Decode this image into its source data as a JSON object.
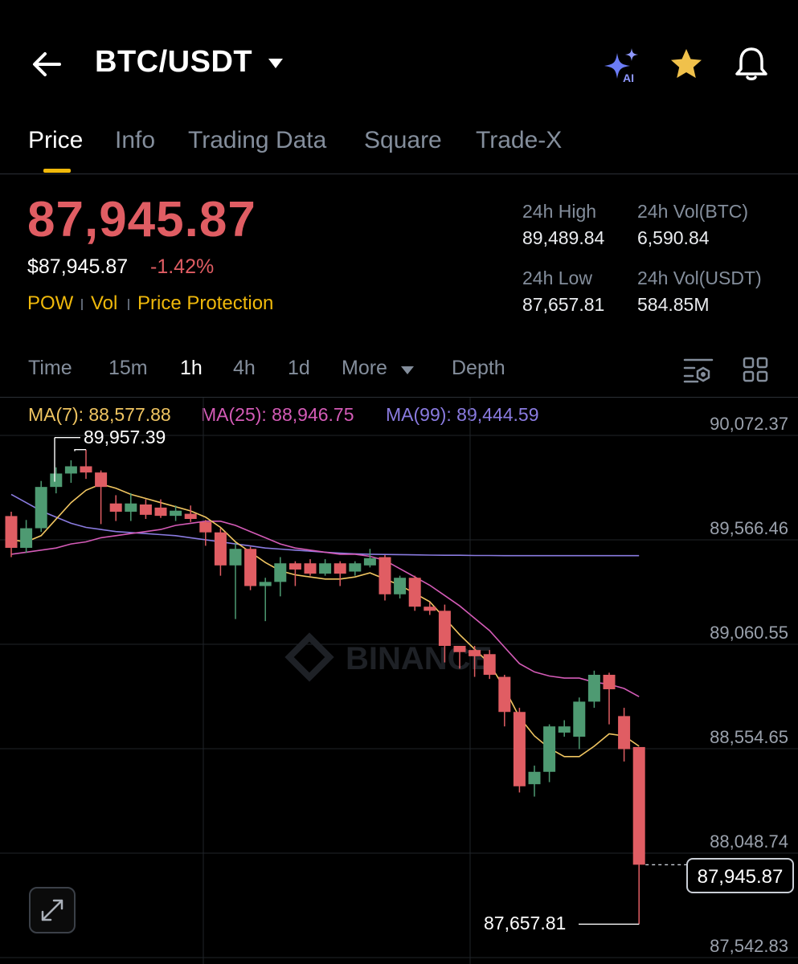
{
  "header": {
    "pair": "BTC/USDT",
    "icons": [
      "back-arrow-icon",
      "ai-sparkle-icon",
      "star-icon",
      "bell-icon"
    ],
    "ai_badge": "AI"
  },
  "tabs": [
    {
      "label": "Price",
      "active": true
    },
    {
      "label": "Info"
    },
    {
      "label": "Trading Data"
    },
    {
      "label": "Square"
    },
    {
      "label": "Trade-X"
    }
  ],
  "ticker": {
    "last_price": "87,945.87",
    "usd_price": "$87,945.87",
    "change_pct": "-1.42%",
    "tags": [
      "POW",
      "Vol",
      "Price Protection"
    ],
    "high_label": "24h High",
    "high": "89,489.84",
    "low_label": "24h Low",
    "low": "87,657.81",
    "vol_btc_label": "24h Vol(BTC)",
    "vol_btc": "6,590.84",
    "vol_usdt_label": "24h Vol(USDT)",
    "vol_usdt": "584.85M"
  },
  "intervals": [
    {
      "label": "Time"
    },
    {
      "label": "15m"
    },
    {
      "label": "1h",
      "active": true
    },
    {
      "label": "4h"
    },
    {
      "label": "1d"
    },
    {
      "label": "More"
    },
    {
      "label": "Depth"
    }
  ],
  "ma": {
    "ma7": "MA(7): 88,577.88",
    "ma25": "MA(25): 88,946.75",
    "ma99": "MA(99): 89,444.59"
  },
  "colors": {
    "up": "#4e9a72",
    "down": "#e05d63",
    "ma7": "#f0c561",
    "ma25": "#d45bb7",
    "ma99": "#8a7be0",
    "accent": "#f0b90b"
  },
  "watermark": "BINANCE",
  "chart_data": {
    "type": "candlestick",
    "y_ticks": [
      "90,072.37",
      "89,566.46",
      "89,060.55",
      "88,554.65",
      "88,048.74",
      "87,542.83"
    ],
    "ylim": [
      87542.83,
      90072.37
    ],
    "high_label": "89,957.39",
    "low_label": "87,657.81",
    "last_price_label": "87,945.87",
    "last_price": 87945.87,
    "candles": [
      [
        89635,
        89481,
        89656,
        89436
      ],
      [
        89481,
        89576,
        89616,
        89456
      ],
      [
        89576,
        89776,
        89805,
        89558
      ],
      [
        89776,
        89841,
        89871,
        89745
      ],
      [
        89841,
        89876,
        89905,
        89796
      ],
      [
        89876,
        89846,
        89957,
        89815
      ],
      [
        89846,
        89776,
        89856,
        89596
      ],
      [
        89696,
        89656,
        89736,
        89611
      ],
      [
        89656,
        89696,
        89746,
        89611
      ],
      [
        89691,
        89641,
        89716,
        89621
      ],
      [
        89676,
        89636,
        89716,
        89626
      ],
      [
        89636,
        89661,
        89686,
        89611
      ],
      [
        89646,
        89621,
        89686,
        89606
      ],
      [
        89606,
        89556,
        89616,
        89491
      ],
      [
        89556,
        89396,
        89576,
        89346
      ],
      [
        89396,
        89476,
        89506,
        89136
      ],
      [
        89476,
        89296,
        89486,
        89276
      ],
      [
        89296,
        89316,
        89336,
        89126
      ],
      [
        89316,
        89406,
        89436,
        89246
      ],
      [
        89406,
        89376,
        89416,
        89296
      ],
      [
        89406,
        89356,
        89426,
        89346
      ],
      [
        89356,
        89406,
        89426,
        89346
      ],
      [
        89406,
        89356,
        89416,
        89296
      ],
      [
        89366,
        89406,
        89416,
        89346
      ],
      [
        89396,
        89431,
        89476,
        89386
      ],
      [
        89436,
        89256,
        89446,
        89226
      ],
      [
        89256,
        89336,
        89346,
        89236
      ],
      [
        89336,
        89196,
        89346,
        89176
      ],
      [
        89196,
        89176,
        89216,
        89156
      ],
      [
        89176,
        89006,
        89206,
        88926
      ],
      [
        89006,
        88976,
        89006,
        88896
      ],
      [
        88986,
        88956,
        89006,
        88856
      ],
      [
        88966,
        88866,
        88986,
        88846
      ],
      [
        88856,
        88686,
        88866,
        88616
      ],
      [
        88686,
        88326,
        88706,
        88296
      ],
      [
        88336,
        88396,
        88426,
        88276
      ],
      [
        88396,
        88616,
        88626,
        88346
      ],
      [
        88586,
        88616,
        88646,
        88566
      ],
      [
        88566,
        88736,
        88756,
        88506
      ],
      [
        88736,
        88866,
        88886,
        88706
      ],
      [
        88866,
        88796,
        88876,
        88626
      ],
      [
        88666,
        88506,
        88706,
        88446
      ],
      [
        88516,
        87946,
        88516,
        87658
      ]
    ],
    "ma7": [
      89520,
      89510,
      89540,
      89620,
      89700,
      89760,
      89790,
      89770,
      89740,
      89720,
      89700,
      89680,
      89660,
      89630,
      89580,
      89510,
      89460,
      89410,
      89370,
      89350,
      89340,
      89330,
      89330,
      89340,
      89360,
      89330,
      89300,
      89260,
      89220,
      89140,
      89060,
      88990,
      88920,
      88800,
      88660,
      88570,
      88510,
      88470,
      88470,
      88520,
      88580,
      88570,
      88520
    ],
    "ma25": [
      89450,
      89460,
      89470,
      89480,
      89500,
      89510,
      89530,
      89540,
      89550,
      89560,
      89570,
      89590,
      89600,
      89610,
      89610,
      89590,
      89560,
      89530,
      89500,
      89480,
      89470,
      89460,
      89450,
      89450,
      89440,
      89420,
      89380,
      89340,
      89300,
      89250,
      89200,
      89140,
      89080,
      89000,
      88920,
      88880,
      88860,
      88850,
      88850,
      88830,
      88820,
      88800,
      88760
    ],
    "ma99": [
      89740,
      89700,
      89660,
      89630,
      89600,
      89580,
      89570,
      89560,
      89555,
      89550,
      89545,
      89540,
      89530,
      89520,
      89510,
      89500,
      89490,
      89480,
      89475,
      89470,
      89465,
      89460,
      89455,
      89452,
      89450,
      89449,
      89448,
      89447,
      89446,
      89445,
      89445,
      89444,
      89444,
      89443,
      89443,
      89443,
      89443,
      89443,
      89443,
      89443,
      89443,
      89443,
      89443
    ]
  }
}
